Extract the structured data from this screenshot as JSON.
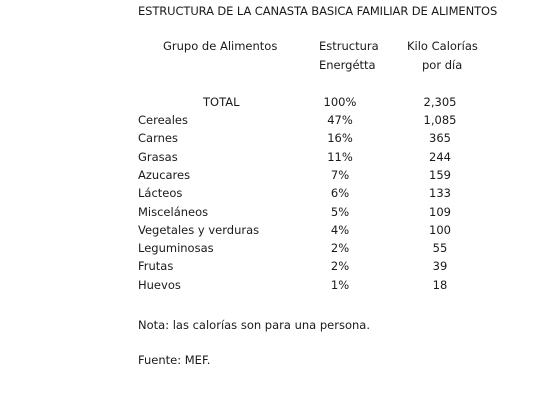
{
  "title": "ESTRUCTURA DE LA CANASTA BASICA FAMILIAR DE ALIMENTOS",
  "headers": {
    "group": "Grupo de Alimentos",
    "structure_line1": "Estructura",
    "structure_line2": "Energétta",
    "kcal_line1": "Kilo Calorías",
    "kcal_line2": "por día"
  },
  "total": {
    "label": "TOTAL",
    "percent": "100%",
    "kcal": "2,305"
  },
  "rows": [
    {
      "name": "Cereales",
      "percent": "47%",
      "kcal": "1,085"
    },
    {
      "name": "Carnes",
      "percent": "16%",
      "kcal": "365"
    },
    {
      "name": "Grasas",
      "percent": "11%",
      "kcal": "244"
    },
    {
      "name": "Azucares",
      "percent": "7%",
      "kcal": "159"
    },
    {
      "name": "Lácteos",
      "percent": "6%",
      "kcal": "133"
    },
    {
      "name": "Misceláneos",
      "percent": "5%",
      "kcal": "109"
    },
    {
      "name": "Vegetales y verduras",
      "percent": "4%",
      "kcal": "100"
    },
    {
      "name": "Leguminosas",
      "percent": "2%",
      "kcal": "55"
    },
    {
      "name": "Frutas",
      "percent": "2%",
      "kcal": "39"
    },
    {
      "name": "Huevos",
      "percent": "1%",
      "kcal": "18"
    }
  ],
  "note": "Nota: las calorías son para una persona.",
  "source": "Fuente: MEF."
}
